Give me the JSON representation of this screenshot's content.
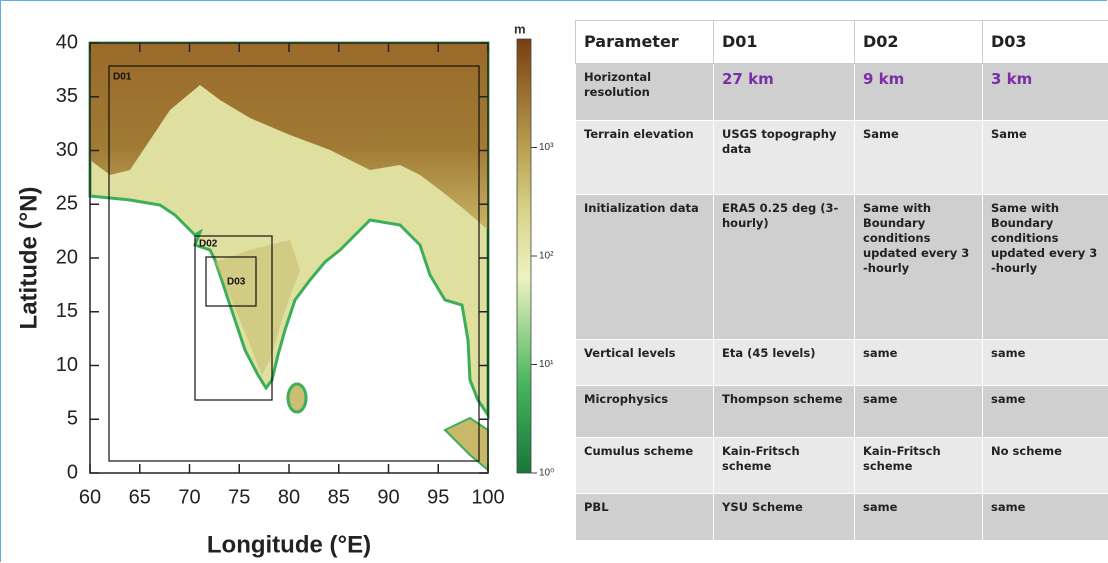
{
  "map": {
    "x_label": "Longitude (°E)",
    "y_label": "Latitude (°N)",
    "xlim": [
      60,
      100
    ],
    "ylim": [
      0,
      40
    ],
    "xticks": [
      60,
      65,
      70,
      75,
      80,
      85,
      90,
      95,
      100
    ],
    "yticks": [
      0,
      5,
      10,
      15,
      20,
      25,
      30,
      35,
      40
    ],
    "domains": [
      "D01",
      "D02",
      "D03"
    ],
    "colorbar": {
      "label": "m",
      "log": true,
      "lim": [
        1,
        10000
      ],
      "ticks": [
        {
          "value": 1,
          "label": "10⁰"
        },
        {
          "value": 10,
          "label": "10¹"
        },
        {
          "value": 100,
          "label": "10²"
        },
        {
          "value": 1000,
          "label": "10³"
        }
      ]
    }
  },
  "table": {
    "header": [
      "Parameter",
      "D01",
      "D02",
      "D03"
    ],
    "rows": [
      [
        "Horizontal resolution",
        "27 km",
        "9 km",
        "3 km"
      ],
      [
        "Terrain elevation",
        "USGS topography data",
        "Same",
        "Same"
      ],
      [
        "Initialization data",
        "ERA5 0.25 deg (3- hourly)",
        "Same with Boundary conditions updated every 3 -hourly",
        "Same with Boundary conditions updated every 3 -hourly"
      ],
      [
        "Vertical levels",
        "Eta (45 levels)",
        "same",
        "same"
      ],
      [
        "Microphysics",
        "Thompson scheme",
        "same",
        "same"
      ],
      [
        "Cumulus scheme",
        "Kain-Fritsch scheme",
        "Kain-Fritsch scheme",
        "No scheme"
      ],
      [
        "PBL",
        "YSU Scheme",
        "same",
        "same"
      ]
    ]
  }
}
